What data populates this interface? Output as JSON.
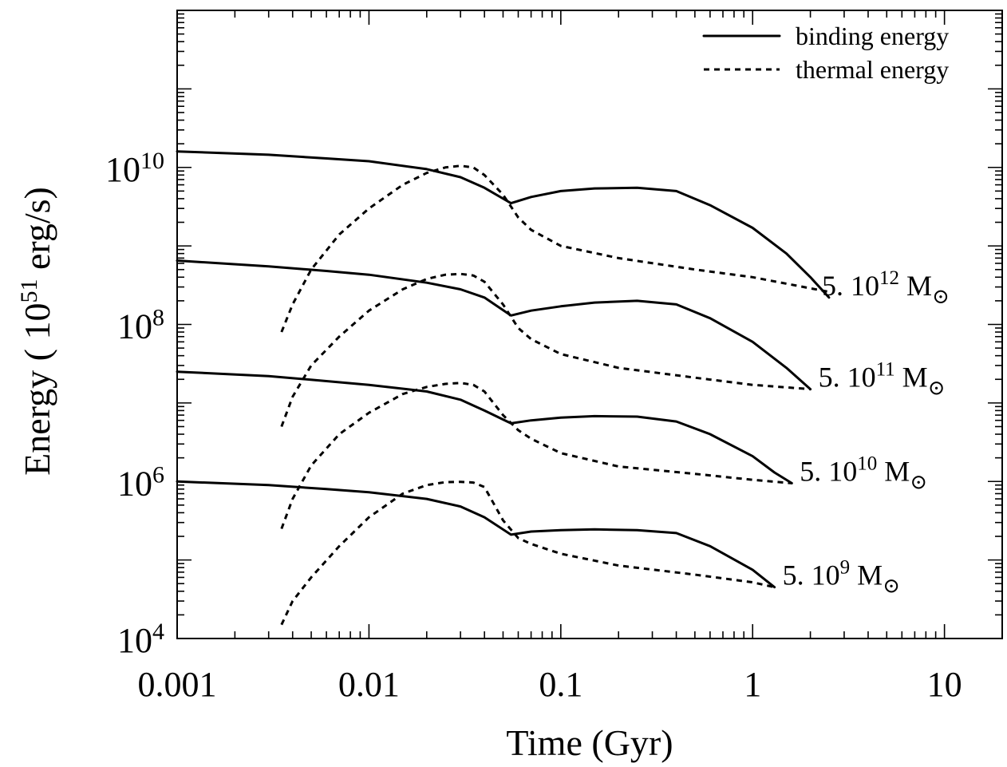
{
  "chart_data": {
    "type": "line",
    "xlabel": "Time (Gyr)",
    "ylabel_parts": {
      "before": "Energy ( 10",
      "sup": "51",
      "after": " erg/s)"
    },
    "x_scale": "log",
    "y_scale": "log",
    "xlim": [
      0.001,
      20
    ],
    "ylim": [
      10000,
      1000000000000.0
    ],
    "x_ticks": [
      {
        "value": 0.001,
        "label": "0.001"
      },
      {
        "value": 0.01,
        "label": "0.01"
      },
      {
        "value": 0.1,
        "label": "0.1"
      },
      {
        "value": 1,
        "label": "1"
      },
      {
        "value": 10,
        "label": "10"
      }
    ],
    "y_ticks": [
      {
        "value": 10000,
        "base": "10",
        "exp": "4"
      },
      {
        "value": 1000000,
        "base": "10",
        "exp": "6"
      },
      {
        "value": 100000000,
        "base": "10",
        "exp": "8"
      },
      {
        "value": 10000000000,
        "base": "10",
        "exp": "10"
      }
    ],
    "grid": false,
    "legend": {
      "position": "top-right",
      "entries": [
        {
          "label": "binding energy",
          "style": "solid"
        },
        {
          "label": "thermal energy",
          "style": "dashed"
        }
      ]
    },
    "series": [
      {
        "mass_label": {
          "prefix": "5. 10",
          "exp": "12",
          "unit": "M",
          "sub": "⊙"
        },
        "binding": [
          [
            0.001,
            16000000000.0
          ],
          [
            0.003,
            14500000000.0
          ],
          [
            0.006,
            13000000000.0
          ],
          [
            0.01,
            12000000000.0
          ],
          [
            0.02,
            9500000000.0
          ],
          [
            0.03,
            7500000000.0
          ],
          [
            0.04,
            5500000000.0
          ],
          [
            0.055,
            3500000000.0
          ],
          [
            0.07,
            4200000000.0
          ],
          [
            0.1,
            5000000000.0
          ],
          [
            0.15,
            5400000000.0
          ],
          [
            0.25,
            5500000000.0
          ],
          [
            0.4,
            5000000000.0
          ],
          [
            0.6,
            3300000000.0
          ],
          [
            1.0,
            1700000000.0
          ],
          [
            1.5,
            800000000.0
          ],
          [
            2.0,
            400000000.0
          ],
          [
            2.5,
            220000000.0
          ]
        ],
        "thermal": [
          [
            0.0035,
            80000000.0
          ],
          [
            0.004,
            180000000.0
          ],
          [
            0.005,
            500000000.0
          ],
          [
            0.007,
            1400000000.0
          ],
          [
            0.01,
            3000000000.0
          ],
          [
            0.015,
            6000000000.0
          ],
          [
            0.02,
            8500000000.0
          ],
          [
            0.025,
            10000000000.0
          ],
          [
            0.03,
            10500000000.0
          ],
          [
            0.035,
            10000000000.0
          ],
          [
            0.04,
            8000000000.0
          ],
          [
            0.05,
            4500000000.0
          ],
          [
            0.06,
            2300000000.0
          ],
          [
            0.07,
            1600000000.0
          ],
          [
            0.1,
            1000000000.0
          ],
          [
            0.2,
            700000000.0
          ],
          [
            0.5,
            500000000.0
          ],
          [
            1.0,
            400000000.0
          ],
          [
            2.5,
            260000000.0
          ]
        ]
      },
      {
        "mass_label": {
          "prefix": "5. 10",
          "exp": "11",
          "unit": "M",
          "sub": "⊙"
        },
        "binding": [
          [
            0.001,
            650000000.0
          ],
          [
            0.003,
            550000000.0
          ],
          [
            0.006,
            480000000.0
          ],
          [
            0.01,
            430000000.0
          ],
          [
            0.02,
            340000000.0
          ],
          [
            0.03,
            280000000.0
          ],
          [
            0.04,
            220000000.0
          ],
          [
            0.055,
            130000000.0
          ],
          [
            0.07,
            150000000.0
          ],
          [
            0.1,
            170000000.0
          ],
          [
            0.15,
            190000000.0
          ],
          [
            0.25,
            200000000.0
          ],
          [
            0.4,
            180000000.0
          ],
          [
            0.6,
            120000000.0
          ],
          [
            1.0,
            60000000.0
          ],
          [
            1.5,
            28000000.0
          ],
          [
            2.0,
            15000000.0
          ]
        ],
        "thermal": [
          [
            0.0035,
            5000000.0
          ],
          [
            0.004,
            12000000.0
          ],
          [
            0.005,
            30000000.0
          ],
          [
            0.007,
            70000000.0
          ],
          [
            0.01,
            150000000.0
          ],
          [
            0.015,
            280000000.0
          ],
          [
            0.02,
            380000000.0
          ],
          [
            0.025,
            430000000.0
          ],
          [
            0.03,
            440000000.0
          ],
          [
            0.035,
            420000000.0
          ],
          [
            0.04,
            350000000.0
          ],
          [
            0.05,
            180000000.0
          ],
          [
            0.06,
            90000000.0
          ],
          [
            0.07,
            65000000.0
          ],
          [
            0.1,
            42000000.0
          ],
          [
            0.2,
            28000000.0
          ],
          [
            0.5,
            21000000.0
          ],
          [
            1.0,
            17000000.0
          ],
          [
            2.0,
            15000000.0
          ]
        ]
      },
      {
        "mass_label": {
          "prefix": "5. 10",
          "exp": "10",
          "unit": "M",
          "sub": "⊙"
        },
        "binding": [
          [
            0.001,
            25000000.0
          ],
          [
            0.003,
            22000000.0
          ],
          [
            0.006,
            19000000.0
          ],
          [
            0.01,
            17000000.0
          ],
          [
            0.02,
            14000000.0
          ],
          [
            0.03,
            11000000.0
          ],
          [
            0.04,
            8000000.0
          ],
          [
            0.055,
            5500000.0
          ],
          [
            0.07,
            6000000.0
          ],
          [
            0.1,
            6500000.0
          ],
          [
            0.15,
            6800000.0
          ],
          [
            0.25,
            6700000.0
          ],
          [
            0.4,
            5800000.0
          ],
          [
            0.6,
            4000000.0
          ],
          [
            1.0,
            2100000.0
          ],
          [
            1.3,
            1300000.0
          ],
          [
            1.6,
            950000.0
          ]
        ],
        "thermal": [
          [
            0.0035,
            250000.0
          ],
          [
            0.004,
            600000.0
          ],
          [
            0.005,
            1600000.0
          ],
          [
            0.007,
            4000000.0
          ],
          [
            0.01,
            7500000.0
          ],
          [
            0.015,
            13000000.0
          ],
          [
            0.02,
            16000000.0
          ],
          [
            0.025,
            17500000.0
          ],
          [
            0.03,
            18000000.0
          ],
          [
            0.035,
            17000000.0
          ],
          [
            0.04,
            14000000.0
          ],
          [
            0.05,
            7000000.0
          ],
          [
            0.06,
            4500000.0
          ],
          [
            0.07,
            3500000.0
          ],
          [
            0.1,
            2300000.0
          ],
          [
            0.2,
            1550000.0
          ],
          [
            0.5,
            1250000.0
          ],
          [
            1.0,
            1050000.0
          ],
          [
            1.6,
            950000.0
          ]
        ]
      },
      {
        "mass_label": {
          "prefix": "5. 10",
          "exp": "9",
          "unit": "M",
          "sub": "⊙"
        },
        "binding": [
          [
            0.001,
            1000000.0
          ],
          [
            0.003,
            900000.0
          ],
          [
            0.006,
            800000.0
          ],
          [
            0.01,
            730000.0
          ],
          [
            0.02,
            600000.0
          ],
          [
            0.03,
            480000.0
          ],
          [
            0.04,
            350000.0
          ],
          [
            0.055,
            210000.0
          ],
          [
            0.07,
            230000.0
          ],
          [
            0.1,
            240000.0
          ],
          [
            0.15,
            245000.0
          ],
          [
            0.25,
            240000.0
          ],
          [
            0.4,
            220000.0
          ],
          [
            0.6,
            150000.0
          ],
          [
            1.0,
            75000.0
          ],
          [
            1.3,
            45000.0
          ]
        ],
        "thermal": [
          [
            0.0035,
            15000.0
          ],
          [
            0.004,
            30000.0
          ],
          [
            0.005,
            60000.0
          ],
          [
            0.007,
            150000.0
          ],
          [
            0.01,
            350000.0
          ],
          [
            0.015,
            700000.0
          ],
          [
            0.02,
            900000.0
          ],
          [
            0.025,
            980000.0
          ],
          [
            0.03,
            990000.0
          ],
          [
            0.035,
            970000.0
          ],
          [
            0.04,
            850000.0
          ],
          [
            0.05,
            320000.0
          ],
          [
            0.06,
            190000.0
          ],
          [
            0.07,
            160000.0
          ],
          [
            0.1,
            120000.0
          ],
          [
            0.2,
            85000.0
          ],
          [
            0.5,
            65000.0
          ],
          [
            1.0,
            52000.0
          ],
          [
            1.3,
            45000.0
          ]
        ]
      }
    ]
  }
}
